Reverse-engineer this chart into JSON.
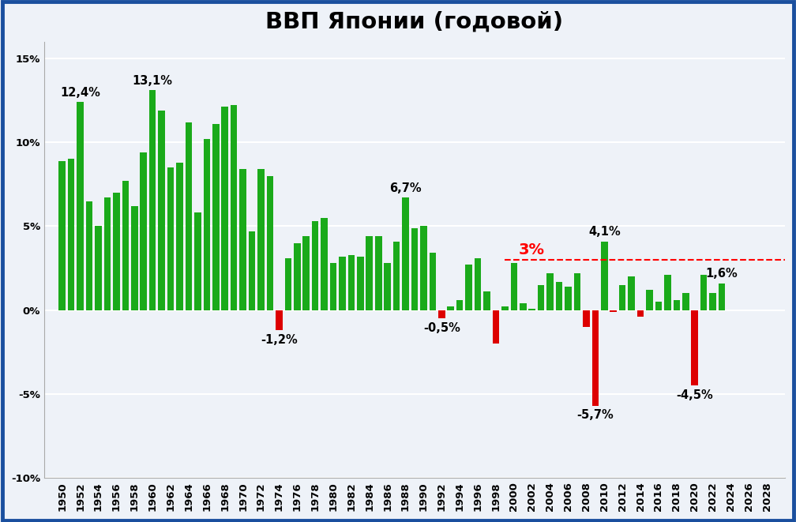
{
  "title": "ВВП Японии (годовой)",
  "years": [
    1950,
    1951,
    1952,
    1953,
    1954,
    1955,
    1956,
    1957,
    1958,
    1959,
    1960,
    1961,
    1962,
    1963,
    1964,
    1965,
    1966,
    1967,
    1968,
    1969,
    1970,
    1971,
    1972,
    1973,
    1974,
    1975,
    1976,
    1977,
    1978,
    1979,
    1980,
    1981,
    1982,
    1983,
    1984,
    1985,
    1986,
    1987,
    1988,
    1989,
    1990,
    1991,
    1992,
    1993,
    1994,
    1995,
    1996,
    1997,
    1998,
    1999,
    2000,
    2001,
    2002,
    2003,
    2004,
    2005,
    2006,
    2007,
    2008,
    2009,
    2010,
    2011,
    2012,
    2013,
    2014,
    2015,
    2016,
    2017,
    2018,
    2019,
    2020,
    2021,
    2022,
    2023
  ],
  "values": [
    8.9,
    9.0,
    12.4,
    6.5,
    5.0,
    6.7,
    7.0,
    7.7,
    6.2,
    9.4,
    13.1,
    11.9,
    8.5,
    8.8,
    11.2,
    5.8,
    10.2,
    11.1,
    12.1,
    12.2,
    8.4,
    4.7,
    8.4,
    8.0,
    -1.2,
    3.1,
    4.0,
    4.4,
    5.3,
    5.5,
    2.8,
    3.2,
    3.3,
    3.2,
    4.4,
    4.4,
    2.8,
    4.1,
    6.7,
    4.9,
    5.0,
    3.4,
    -0.5,
    0.2,
    0.6,
    2.7,
    3.1,
    1.1,
    -2.0,
    0.2,
    2.8,
    0.4,
    0.1,
    1.5,
    2.2,
    1.7,
    1.4,
    2.2,
    -1.0,
    -5.7,
    4.1,
    -0.1,
    1.5,
    2.0,
    -0.4,
    1.2,
    0.5,
    2.1,
    0.6,
    1.0,
    -4.5,
    2.1,
    1.0,
    1.6
  ],
  "reference_line_y": 3.0,
  "reference_label": "3%",
  "green_color": "#1aaa1a",
  "red_color": "#dd0000",
  "bg_color": "#eef2f8",
  "border_color": "#1a4f9e",
  "title_fontsize": 21,
  "tick_fontsize": 9.5,
  "label_fontsize": 10.5,
  "yticks": [
    -10,
    -5,
    0,
    5,
    10,
    15
  ],
  "yticklabels": [
    "-10%",
    "-5%",
    "0%",
    "5%",
    "10%",
    "15%"
  ]
}
